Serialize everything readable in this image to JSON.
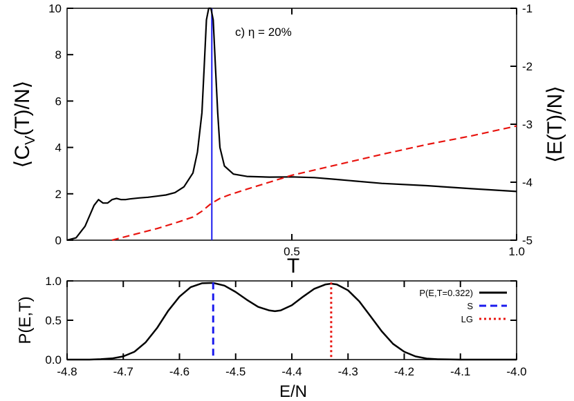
{
  "chart_data": [
    {
      "type": "line",
      "annotation": "c) η = 20%",
      "xlabel": "T",
      "ylabel_left": "⟨C_V(T)/N⟩",
      "ylabel_right": "⟨E(T)/N⟩",
      "xlim": [
        0.0,
        1.0
      ],
      "ylim_left": [
        0,
        10
      ],
      "ylim_right": [
        -5,
        -1
      ],
      "x_ticks": [
        "0.5",
        "1.0"
      ],
      "y_ticks_left": [
        "0",
        "2",
        "4",
        "6",
        "8",
        "10"
      ],
      "y_ticks_right": [
        "-5",
        "-4",
        "-3",
        "-2",
        "-1"
      ],
      "vertical_line_x": 0.322,
      "series": [
        {
          "axis": "left",
          "color": "#000000",
          "style": "solid",
          "x": [
            0.0,
            0.02,
            0.04,
            0.06,
            0.07,
            0.08,
            0.09,
            0.1,
            0.11,
            0.12,
            0.13,
            0.14,
            0.16,
            0.18,
            0.2,
            0.22,
            0.24,
            0.26,
            0.28,
            0.29,
            0.3,
            0.305,
            0.31,
            0.315,
            0.32,
            0.325,
            0.33,
            0.335,
            0.34,
            0.35,
            0.37,
            0.4,
            0.45,
            0.5,
            0.55,
            0.6,
            0.7,
            0.8,
            0.9,
            1.0
          ],
          "values": [
            0.0,
            0.1,
            0.6,
            1.5,
            1.75,
            1.6,
            1.6,
            1.75,
            1.8,
            1.75,
            1.75,
            1.78,
            1.82,
            1.85,
            1.9,
            1.95,
            2.05,
            2.3,
            2.9,
            3.8,
            5.5,
            7.5,
            9.5,
            10.3,
            10.5,
            9.5,
            7.5,
            5.5,
            4.0,
            3.2,
            2.85,
            2.75,
            2.72,
            2.73,
            2.7,
            2.62,
            2.45,
            2.35,
            2.22,
            2.1
          ]
        },
        {
          "axis": "right",
          "color": "#e8140f",
          "style": "dashed",
          "x": [
            0.1,
            0.15,
            0.2,
            0.25,
            0.28,
            0.3,
            0.32,
            0.34,
            0.36,
            0.4,
            0.45,
            0.5,
            0.6,
            0.7,
            0.8,
            0.9,
            1.0
          ],
          "values": [
            -5.0,
            -4.9,
            -4.8,
            -4.68,
            -4.6,
            -4.5,
            -4.37,
            -4.28,
            -4.22,
            -4.12,
            -4.0,
            -3.88,
            -3.7,
            -3.52,
            -3.35,
            -3.2,
            -3.03
          ]
        }
      ]
    },
    {
      "type": "line",
      "xlabel": "E/N",
      "ylabel": "P(E,T)",
      "xlim": [
        -4.8,
        -4.0
      ],
      "ylim": [
        0.0,
        1.0
      ],
      "x_ticks": [
        "-4.8",
        "-4.7",
        "-4.6",
        "-4.5",
        "-4.4",
        "-4.3",
        "-4.2",
        "-4.1",
        "-4.0"
      ],
      "y_ticks": [
        "0.0",
        "0.5",
        "1.0"
      ],
      "legend_placement": "top-right",
      "series": [
        {
          "name": "P(E,T=0.322)",
          "color": "#000000",
          "style": "solid",
          "x": [
            -4.8,
            -4.76,
            -4.74,
            -4.72,
            -4.7,
            -4.68,
            -4.66,
            -4.64,
            -4.62,
            -4.6,
            -4.58,
            -4.56,
            -4.54,
            -4.52,
            -4.5,
            -4.48,
            -4.46,
            -4.44,
            -4.43,
            -4.42,
            -4.4,
            -4.38,
            -4.36,
            -4.34,
            -4.33,
            -4.32,
            -4.3,
            -4.28,
            -4.26,
            -4.24,
            -4.22,
            -4.2,
            -4.18,
            -4.16,
            -4.14,
            -4.1,
            -4.06,
            -4.0
          ],
          "values": [
            0.0,
            0.0,
            0.005,
            0.015,
            0.04,
            0.1,
            0.22,
            0.4,
            0.62,
            0.8,
            0.92,
            0.97,
            0.975,
            0.94,
            0.86,
            0.76,
            0.67,
            0.625,
            0.615,
            0.625,
            0.69,
            0.8,
            0.9,
            0.955,
            0.965,
            0.955,
            0.88,
            0.74,
            0.55,
            0.36,
            0.2,
            0.1,
            0.04,
            0.013,
            0.004,
            0.0,
            0.0,
            0.0
          ]
        },
        {
          "name": "S",
          "color": "#1a1aee",
          "style": "dashed",
          "x_vline": -4.54
        },
        {
          "name": "LG",
          "color": "#e8140f",
          "style": "dotted",
          "x_vline": -4.33
        }
      ]
    }
  ]
}
